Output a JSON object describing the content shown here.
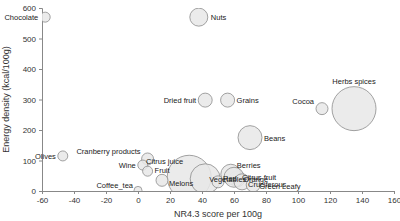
{
  "chart_data": {
    "type": "scatter",
    "marker": "circle",
    "color": "#e8e8e8",
    "x_label": "NR4.3 score per 100g",
    "y_label": "Energy density (kcal/100g)",
    "labels": [
      "Chocolate",
      "Nuts",
      "Dried fruit",
      "Grains",
      "Cocoa",
      "Herbs spices",
      "Beans",
      "Olives",
      "Cranberry products",
      "Wine",
      "Fruit",
      "Citrus juice",
      "Vegetables",
      "Red",
      "Orange",
      "Berries",
      "Citrus fruit",
      "Cruciferous",
      "Green Leafy",
      "Melons",
      "Coffee_tea"
    ],
    "x": [
      -58,
      38,
      42,
      56,
      115,
      135,
      70,
      -47,
      6,
      3,
      6,
      32,
      42,
      50,
      62,
      58,
      60,
      65,
      72,
      15,
      0
    ],
    "values": [
      570,
      570,
      298,
      298,
      270,
      270,
      175,
      115,
      105,
      85,
      65,
      45,
      40,
      30,
      40,
      55,
      45,
      30,
      20,
      35,
      2
    ],
    "sizes": [
      25,
      81,
      49,
      49,
      36,
      484,
      144,
      25,
      36,
      25,
      25,
      484,
      225,
      36,
      64,
      100,
      100,
      64,
      49,
      36,
      16
    ],
    "xlim": [
      -60,
      160
    ],
    "xticks": [
      -60,
      -40,
      -20,
      0,
      20,
      40,
      60,
      80,
      100,
      120,
      140,
      160
    ],
    "ylim": [
      0,
      600
    ],
    "yticks": [
      0,
      100,
      200,
      300,
      400,
      500,
      600
    ],
    "grid": false
  }
}
